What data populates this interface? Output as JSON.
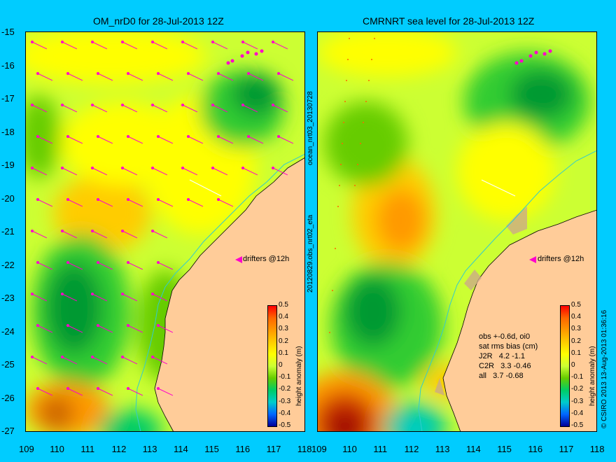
{
  "left_panel": {
    "title": "OM_nrD0 for 28-Jul-2013 12Z",
    "drifter_label": "drifters @12h",
    "colorbar_label": "height anomaly (m)"
  },
  "right_panel": {
    "title": "CMRNRT sea level  for 28-Jul-2013 12Z",
    "drifter_label": "drifters @12h",
    "colorbar_label": "height anomaly (m)",
    "stats": {
      "line1": "obs +-0.6d, oi0",
      "line2": "sat rms bias (cm)",
      "line3": "J2R   4.2 -1.1",
      "line4": "C2R   3.3 -0.46",
      "line5": "all   3.7 -0.68"
    }
  },
  "between_label_top": "ocean_nrt03_20130728",
  "between_label_bottom": "20120829.obs_nrt02_eta",
  "copyright": "© CSIRO 2013   13-Aug-2013 01:36:16",
  "axes": {
    "x_ticks": [
      "109",
      "110",
      "111",
      "112",
      "113",
      "114",
      "115",
      "116",
      "117",
      "118"
    ],
    "y_ticks": [
      "-15",
      "-16",
      "-17",
      "-18",
      "-19",
      "-20",
      "-21",
      "-22",
      "-23",
      "-24",
      "-25",
      "-26",
      "-27"
    ]
  },
  "colorbar": {
    "ticks": [
      "0.5",
      "0.4",
      "0.3",
      "0.2",
      "0.1",
      "0",
      "-0.1",
      "-0.2",
      "-0.3",
      "-0.4",
      "-0.5"
    ],
    "colors": [
      "#ff0000",
      "#ff6600",
      "#ff9900",
      "#ffcc00",
      "#ffff00",
      "#ccff33",
      "#66cc00",
      "#00cc66",
      "#00cccc",
      "#0066ff",
      "#000099"
    ]
  },
  "colors": {
    "background": "#00ccff",
    "land": "#ffcc99",
    "arrow": "#ff00cc",
    "coast_track": "#33cccc"
  }
}
